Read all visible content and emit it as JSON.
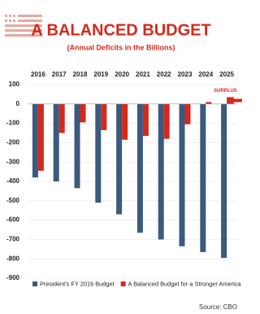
{
  "chart_data": {
    "type": "bar",
    "title": "A BALANCED BUDGET",
    "subtitle": "(Annual Deficits in the Billions)",
    "categories": [
      "2016",
      "2017",
      "2018",
      "2019",
      "2020",
      "2021",
      "2022",
      "2023",
      "2024",
      "2025"
    ],
    "series": [
      {
        "name": "President's FY 2016 Budget",
        "color": "#3b5a7e",
        "values": [
          -380,
          -400,
          -435,
          -510,
          -570,
          -665,
          -700,
          -735,
          -765,
          -795
        ]
      },
      {
        "name": "A Balanced Budget for a Stronger America",
        "color": "#d42a1b",
        "values": [
          -345,
          -150,
          -95,
          -135,
          -185,
          -165,
          -180,
          -105,
          10,
          35
        ]
      }
    ],
    "ylim": [
      -900,
      100
    ],
    "yticks": [
      100,
      0,
      -100,
      -200,
      -300,
      -400,
      -500,
      -600,
      -700,
      -800,
      -900
    ],
    "grid": true,
    "annotation": "SURPLUS",
    "source": "Source: CBO"
  }
}
